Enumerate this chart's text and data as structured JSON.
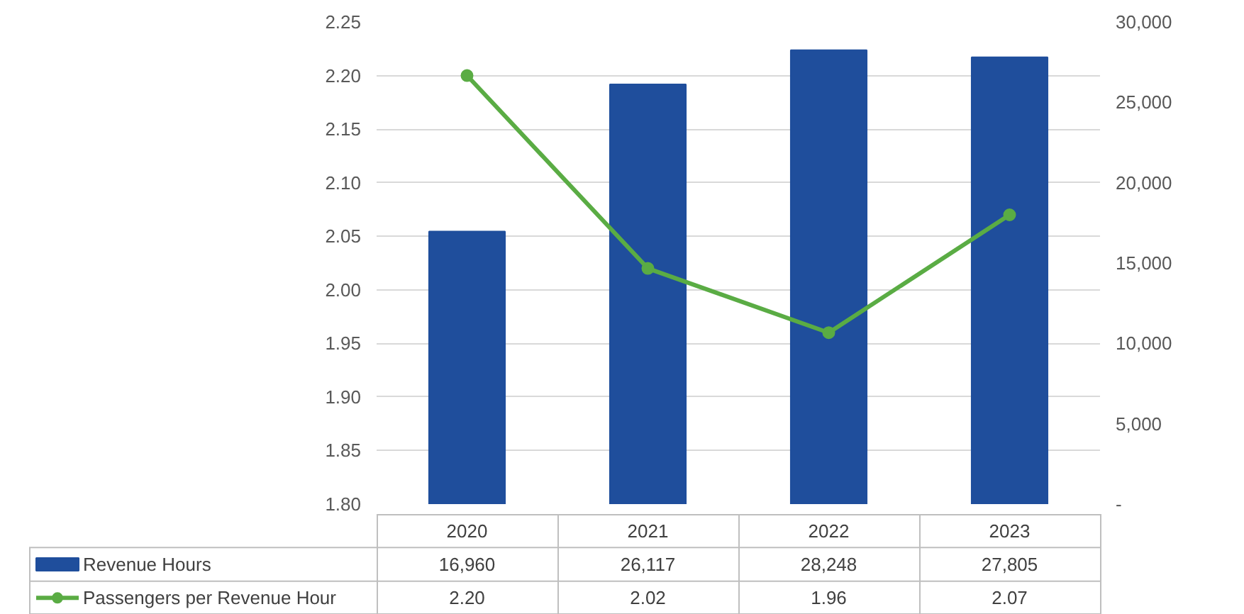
{
  "chart_data": {
    "type": "bar",
    "categories": [
      "2020",
      "2021",
      "2022",
      "2023"
    ],
    "series": [
      {
        "name": "Revenue Hours",
        "axis": "y2",
        "color": "#1f4e9c",
        "values": [
          16960,
          26117,
          28248,
          27805
        ],
        "value_labels": [
          "16,960",
          "26,117",
          "28,248",
          "27,805"
        ]
      },
      {
        "name": "Passengers per Revenue Hour",
        "type": "line",
        "color": "#5aac44",
        "marker": "circle",
        "values": [
          2.2,
          2.02,
          1.96,
          2.07
        ],
        "value_labels": [
          "2.20",
          "2.02",
          "1.96",
          "2.07"
        ]
      }
    ],
    "ylim": [
      1.8,
      2.25
    ],
    "yticks": [
      {
        "value": 1.8,
        "label": "1.80"
      },
      {
        "value": 1.85,
        "label": "1.85"
      },
      {
        "value": 1.9,
        "label": "1.90"
      },
      {
        "value": 1.95,
        "label": "1.95"
      },
      {
        "value": 2.0,
        "label": "2.00"
      },
      {
        "value": 2.05,
        "label": "2.05"
      },
      {
        "value": 2.1,
        "label": "2.10"
      },
      {
        "value": 2.15,
        "label": "2.15"
      },
      {
        "value": 2.2,
        "label": "2.20"
      },
      {
        "value": 2.25,
        "label": "2.25"
      }
    ],
    "y2lim": [
      0,
      30000
    ],
    "y2ticks": [
      {
        "value": 0,
        "label": "-"
      },
      {
        "value": 5000,
        "label": "5,000"
      },
      {
        "value": 10000,
        "label": "10,000"
      },
      {
        "value": 15000,
        "label": "15,000"
      },
      {
        "value": 20000,
        "label": "20,000"
      },
      {
        "value": 25000,
        "label": "25,000"
      },
      {
        "value": 30000,
        "label": "30,000"
      }
    ],
    "grid": "y",
    "legend": "bottom"
  }
}
